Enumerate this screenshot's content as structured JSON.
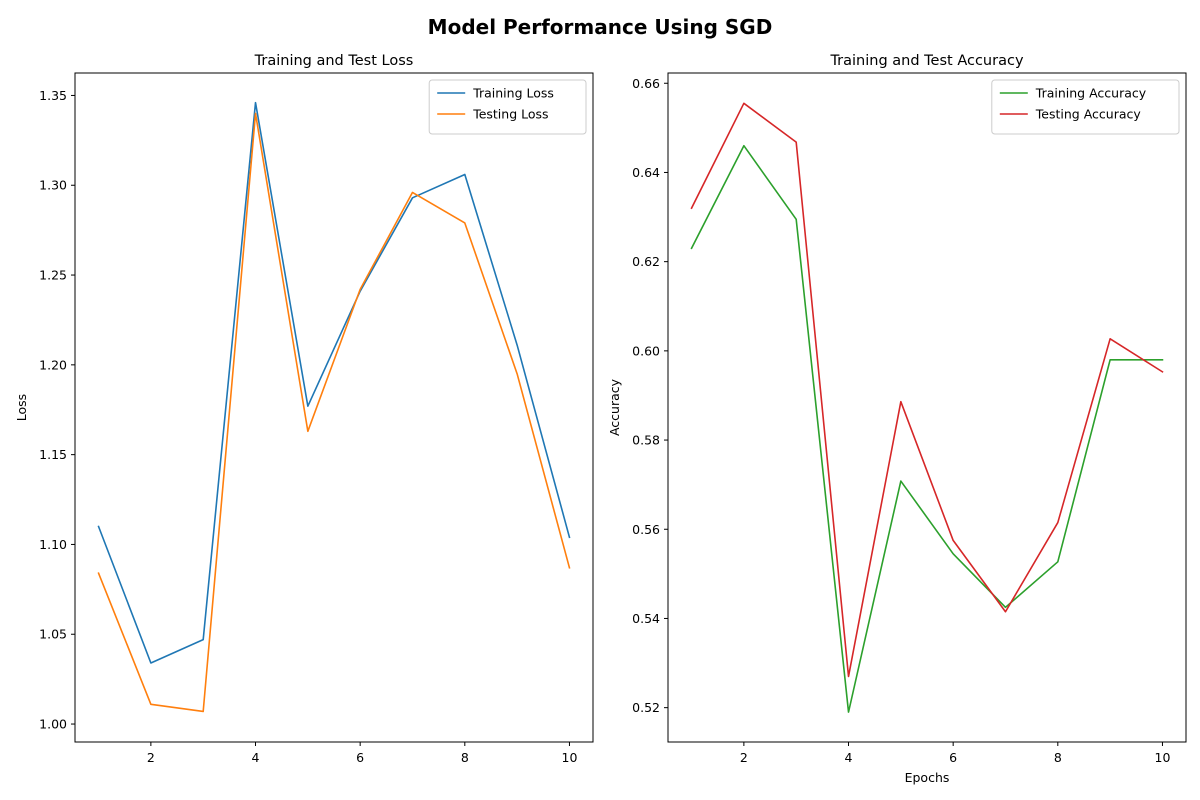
{
  "figure_title": "Model Performance Using SGD",
  "chart_data": [
    {
      "type": "line",
      "title": "Training and Test Loss",
      "xlabel": "",
      "ylabel": "Loss",
      "xlim": [
        0.55,
        10.45
      ],
      "ylim": [
        0.99,
        1.3625
      ],
      "xticks": [
        2,
        4,
        6,
        8,
        10
      ],
      "xtick_labels": [
        "2",
        "4",
        "6",
        "8",
        "10"
      ],
      "yticks": [
        1.0,
        1.05,
        1.1,
        1.15,
        1.2,
        1.25,
        1.3,
        1.35
      ],
      "ytick_labels": [
        "1.00",
        "1.05",
        "1.10",
        "1.15",
        "1.20",
        "1.25",
        "1.30",
        "1.35"
      ],
      "legend_position": "top-right",
      "grid": false,
      "x": [
        1,
        2,
        3,
        4,
        5,
        6,
        7,
        8,
        9,
        10
      ],
      "series": [
        {
          "name": "Training Loss",
          "color": "#1f77b4",
          "values": [
            1.11,
            1.034,
            1.047,
            1.346,
            1.177,
            1.241,
            1.293,
            1.306,
            1.211,
            1.104
          ]
        },
        {
          "name": "Testing Loss",
          "color": "#ff7f0e",
          "values": [
            1.084,
            1.011,
            1.007,
            1.34,
            1.163,
            1.242,
            1.296,
            1.279,
            1.195,
            1.087
          ]
        }
      ]
    },
    {
      "type": "line",
      "title": "Training and Test Accuracy",
      "xlabel": "Epochs",
      "ylabel": "Accuracy",
      "xlim": [
        0.55,
        10.45
      ],
      "ylim": [
        0.5123,
        0.6623
      ],
      "xticks": [
        2,
        4,
        6,
        8,
        10
      ],
      "xtick_labels": [
        "2",
        "4",
        "6",
        "8",
        "10"
      ],
      "yticks": [
        0.52,
        0.54,
        0.56,
        0.58,
        0.6,
        0.62,
        0.64,
        0.66
      ],
      "ytick_labels": [
        "0.52",
        "0.54",
        "0.56",
        "0.58",
        "0.60",
        "0.62",
        "0.64",
        "0.66"
      ],
      "legend_position": "top-right",
      "grid": false,
      "x": [
        1,
        2,
        3,
        4,
        5,
        6,
        7,
        8,
        9,
        10
      ],
      "series": [
        {
          "name": "Training Accuracy",
          "color": "#2ca02c",
          "values": [
            0.623,
            0.646,
            0.6295,
            0.519,
            0.5708,
            0.5545,
            0.5425,
            0.5527,
            0.598,
            0.598
          ]
        },
        {
          "name": "Testing Accuracy",
          "color": "#d62728",
          "values": [
            0.632,
            0.6555,
            0.6468,
            0.527,
            0.5886,
            0.5575,
            0.5415,
            0.5615,
            0.6027,
            0.5953
          ]
        }
      ]
    }
  ]
}
